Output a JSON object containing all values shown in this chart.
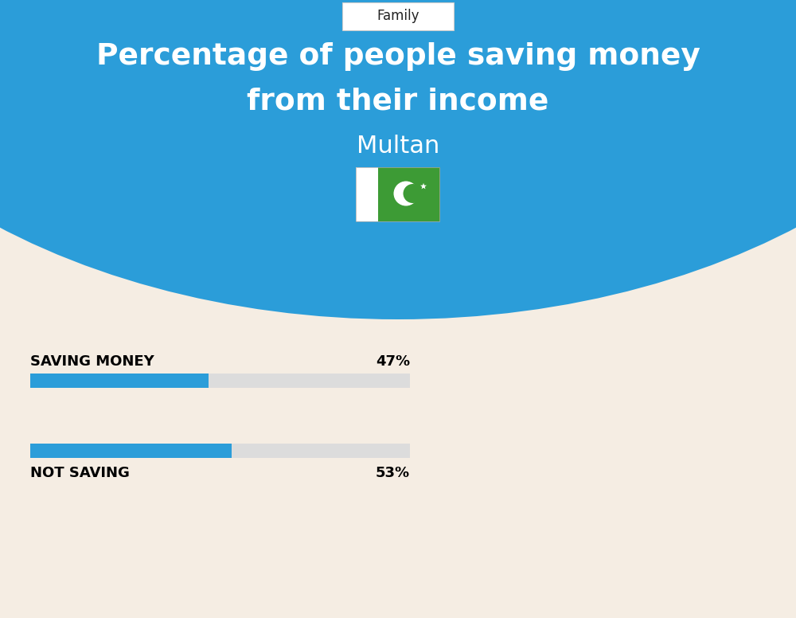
{
  "title_line1": "Percentage of people saving money",
  "title_line2": "from their income",
  "subtitle": "Multan",
  "tab_label": "Family",
  "background_top": "#2B9DD9",
  "background_bottom": "#F5EDE3",
  "title_color": "#FFFFFF",
  "subtitle_color": "#FFFFFF",
  "tab_bg": "#FFFFFF",
  "tab_text_color": "#333333",
  "bar1_label": "SAVING MONEY",
  "bar1_value": 47,
  "bar1_pct": "47%",
  "bar2_label": "NOT SAVING",
  "bar2_value": 53,
  "bar2_pct": "53%",
  "bar_filled_color": "#2B9DD9",
  "bar_empty_color": "#DCDCDC",
  "bar_label_color": "#000000",
  "bar_pct_color": "#000000",
  "fig_width": 10.0,
  "fig_height": 7.76
}
